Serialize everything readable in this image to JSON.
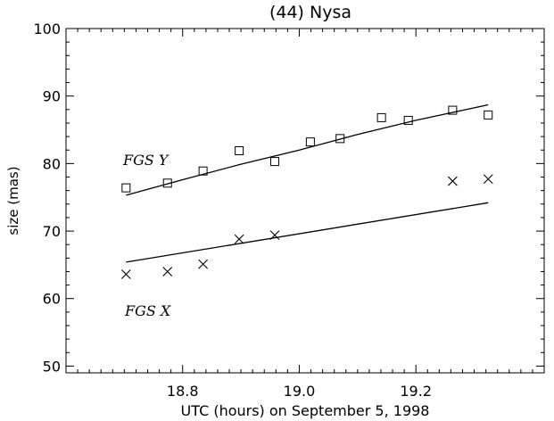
{
  "chart_data": {
    "type": "scatter",
    "title": "(44) Nysa",
    "xlabel": "UTC (hours) on September 5, 1998",
    "ylabel": "size (mas)",
    "xlim": [
      18.6,
      19.42
    ],
    "ylim": [
      49,
      100
    ],
    "x_ticks": [
      18.8,
      19.0,
      19.2
    ],
    "x_tick_labels": [
      "18.8",
      "19.0",
      "19.2"
    ],
    "y_ticks": [
      50,
      60,
      70,
      80,
      90,
      100
    ],
    "y_tick_labels": [
      "50",
      "60",
      "70",
      "80",
      "90",
      "100"
    ],
    "grid": false,
    "series": [
      {
        "name": "FGS Y",
        "marker": "square",
        "x": [
          18.703,
          18.774,
          18.835,
          18.897,
          18.958,
          19.019,
          19.07,
          19.141,
          19.187,
          19.263,
          19.324
        ],
        "y": [
          76.4,
          77.1,
          78.9,
          81.9,
          80.3,
          83.2,
          83.7,
          86.8,
          86.4,
          87.9,
          87.2
        ],
        "fit": {
          "x": [
            18.703,
            18.8,
            18.9,
            19.0,
            19.1,
            19.2,
            19.324
          ],
          "y": [
            75.3,
            77.6,
            79.9,
            82.0,
            84.3,
            86.4,
            88.7
          ]
        }
      },
      {
        "name": "FGS X",
        "marker": "x",
        "x": [
          18.703,
          18.774,
          18.835,
          18.897,
          18.958,
          19.263,
          19.324
        ],
        "y": [
          63.6,
          64.0,
          65.1,
          68.8,
          69.4,
          77.4,
          77.7
        ],
        "fit": {
          "x": [
            18.703,
            19.324
          ],
          "y": [
            65.4,
            74.2
          ]
        }
      }
    ]
  }
}
